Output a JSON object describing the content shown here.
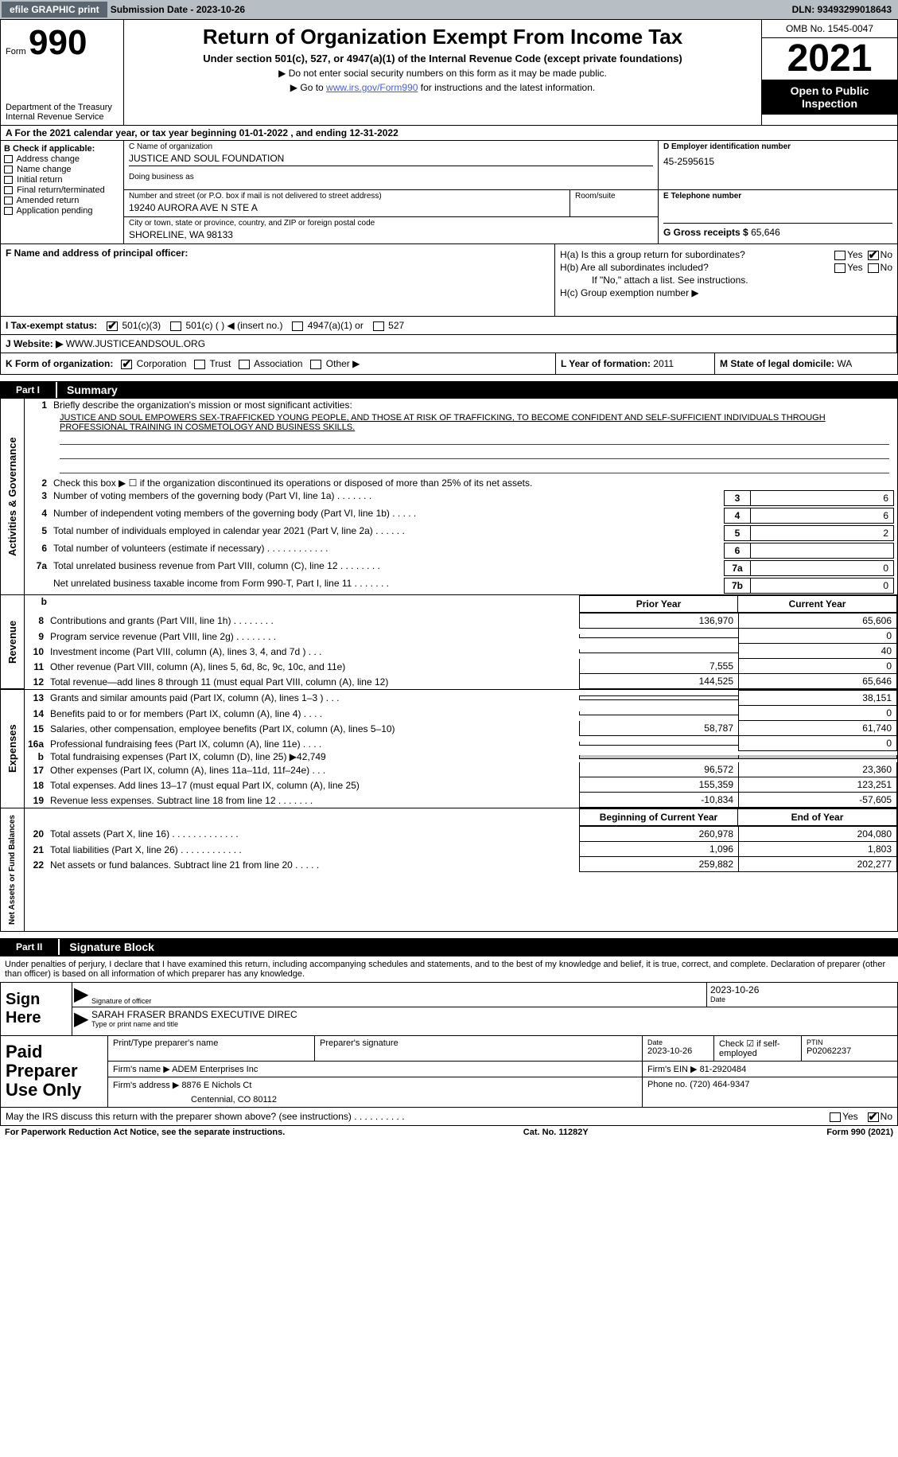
{
  "topbar": {
    "efile_btn": "efile GRAPHIC print",
    "submission_label": "Submission Date - 2023-10-26",
    "dln_label": "DLN: 93493299018643"
  },
  "header": {
    "form_prefix": "Form",
    "form_number": "990",
    "dept": "Department of the Treasury\nInternal Revenue Service",
    "title": "Return of Organization Exempt From Income Tax",
    "subtitle": "Under section 501(c), 527, or 4947(a)(1) of the Internal Revenue Code (except private foundations)",
    "instruct1": "▶ Do not enter social security numbers on this form as it may be made public.",
    "instruct2_pre": "▶ Go to ",
    "instruct2_link": "www.irs.gov/Form990",
    "instruct2_post": " for instructions and the latest information.",
    "omb": "OMB No. 1545-0047",
    "year": "2021",
    "inspection": "Open to Public Inspection"
  },
  "period": "A For the 2021 calendar year, or tax year beginning 01-01-2022    , and ending 12-31-2022",
  "colB": {
    "label": "B Check if applicable:",
    "items": [
      "Address change",
      "Name change",
      "Initial return",
      "Final return/terminated",
      "Amended return",
      "Application pending"
    ]
  },
  "colC": {
    "name_label": "C Name of organization",
    "name": "JUSTICE AND SOUL FOUNDATION",
    "dba_label": "Doing business as",
    "street_label": "Number and street (or P.O. box if mail is not delivered to street address)",
    "street": "19240 AURORA AVE N STE A",
    "suite_label": "Room/suite",
    "city_label": "City or town, state or province, country, and ZIP or foreign postal code",
    "city": "SHORELINE, WA  98133"
  },
  "colD": {
    "label": "D Employer identification number",
    "value": "45-2595615"
  },
  "colE": {
    "label": "E Telephone number",
    "value": ""
  },
  "colG": {
    "label": "G Gross receipts $",
    "value": "65,646"
  },
  "colF": {
    "label": "F  Name and address of principal officer:"
  },
  "colH": {
    "ha": "H(a)  Is this a group return for subordinates?",
    "hb": "H(b)  Are all subordinates included?",
    "hb_note": "If \"No,\" attach a list. See instructions.",
    "hc": "H(c)  Group exemption number ▶",
    "yes": "Yes",
    "no": "No"
  },
  "taxexempt": {
    "label": "I    Tax-exempt status:",
    "opt1": "501(c)(3)",
    "opt2": "501(c) (  ) ◀ (insert no.)",
    "opt3": "4947(a)(1) or",
    "opt4": "527"
  },
  "website": {
    "label": "J   Website: ▶",
    "value": "WWW.JUSTICEANDSOUL.ORG"
  },
  "korg": {
    "label": "K Form of organization:",
    "opts": [
      "Corporation",
      "Trust",
      "Association",
      "Other ▶"
    ],
    "year_label": "L Year of formation:",
    "year": "2011",
    "state_label": "M State of legal domicile:",
    "state": "WA"
  },
  "part1": {
    "num": "Part I",
    "title": "Summary"
  },
  "summary": {
    "line1_label": "Briefly describe the organization's mission or most significant activities:",
    "mission": "JUSTICE AND SOUL EMPOWERS SEX-TRAFFICKED YOUNG PEOPLE, AND THOSE AT RISK OF TRAFFICKING, TO BECOME CONFIDENT AND SELF-SUFFICIENT INDIVIDUALS THROUGH PROFESSIONAL TRAINING IN COSMETOLOGY AND BUSINESS SKILLS.",
    "line2": "Check this box ▶ ☐  if the organization discontinued its operations or disposed of more than 25% of its net assets.",
    "lines": [
      {
        "n": "3",
        "d": "Number of voting members of the governing body (Part VI, line 1a)  .   .   .   .   .   .   .",
        "b": "3",
        "v": "6"
      },
      {
        "n": "4",
        "d": "Number of independent voting members of the governing body (Part VI, line 1b)  .   .   .   .   .",
        "b": "4",
        "v": "6"
      },
      {
        "n": "5",
        "d": "Total number of individuals employed in calendar year 2021 (Part V, line 2a)  .   .   .   .   .   .",
        "b": "5",
        "v": "2"
      },
      {
        "n": "6",
        "d": "Total number of volunteers (estimate if necessary)    .   .   .   .   .   .   .   .   .   .   .   .",
        "b": "6",
        "v": ""
      },
      {
        "n": "7a",
        "d": "Total unrelated business revenue from Part VIII, column (C), line 12    .   .   .   .   .   .   .   .",
        "b": "7a",
        "v": "0"
      },
      {
        "n": "",
        "d": "Net unrelated business taxable income from Form 990-T, Part I, line 11   .   .   .   .   .   .   .",
        "b": "7b",
        "v": "0"
      }
    ]
  },
  "twocol": {
    "head_prior": "Prior Year",
    "head_current": "Current Year",
    "revenue": [
      {
        "n": "8",
        "d": "Contributions and grants (Part VIII, line 1h)   .   .   .   .   .   .   .   .",
        "p": "136,970",
        "c": "65,606"
      },
      {
        "n": "9",
        "d": "Program service revenue (Part VIII, line 2g)    .   .   .   .   .   .   .   .",
        "p": "",
        "c": "0"
      },
      {
        "n": "10",
        "d": "Investment income (Part VIII, column (A), lines 3, 4, and 7d )   .   .   .",
        "p": "",
        "c": "40"
      },
      {
        "n": "11",
        "d": "Other revenue (Part VIII, column (A), lines 5, 6d, 8c, 9c, 10c, and 11e)",
        "p": "7,555",
        "c": "0"
      },
      {
        "n": "12",
        "d": "Total revenue—add lines 8 through 11 (must equal Part VIII, column (A), line 12)",
        "p": "144,525",
        "c": "65,646"
      }
    ],
    "expenses": [
      {
        "n": "13",
        "d": "Grants and similar amounts paid (Part IX, column (A), lines 1–3 )   .   .   .",
        "p": "",
        "c": "38,151"
      },
      {
        "n": "14",
        "d": "Benefits paid to or for members (Part IX, column (A), line 4)   .   .   .   .",
        "p": "",
        "c": "0"
      },
      {
        "n": "15",
        "d": "Salaries, other compensation, employee benefits (Part IX, column (A), lines 5–10)",
        "p": "58,787",
        "c": "61,740"
      },
      {
        "n": "16a",
        "d": "Professional fundraising fees (Part IX, column (A), line 11e)   .   .   .   .",
        "p": "",
        "c": "0"
      },
      {
        "n": "b",
        "d": "Total fundraising expenses (Part IX, column (D), line 25) ▶42,749",
        "p": "grey",
        "c": "grey"
      },
      {
        "n": "17",
        "d": "Other expenses (Part IX, column (A), lines 11a–11d, 11f–24e)   .   .   .",
        "p": "96,572",
        "c": "23,360"
      },
      {
        "n": "18",
        "d": "Total expenses. Add lines 13–17 (must equal Part IX, column (A), line 25)",
        "p": "155,359",
        "c": "123,251"
      },
      {
        "n": "19",
        "d": "Revenue less expenses. Subtract line 18 from line 12  .   .   .   .   .   .   .",
        "p": "-10,834",
        "c": "-57,605"
      }
    ],
    "head_begin": "Beginning of Current Year",
    "head_end": "End of Year",
    "netassets": [
      {
        "n": "20",
        "d": "Total assets (Part X, line 16)  .   .   .   .   .   .   .   .   .   .   .   .   .",
        "p": "260,978",
        "c": "204,080"
      },
      {
        "n": "21",
        "d": "Total liabilities (Part X, line 26)   .   .   .   .   .   .   .   .   .   .   .   .",
        "p": "1,096",
        "c": "1,803"
      },
      {
        "n": "22",
        "d": "Net assets or fund balances. Subtract line 21 from line 20  .   .   .   .   .",
        "p": "259,882",
        "c": "202,277"
      }
    ]
  },
  "part2": {
    "num": "Part II",
    "title": "Signature Block"
  },
  "sig": {
    "intro": "Under penalties of perjury, I declare that I have examined this return, including accompanying schedules and statements, and to the best of my knowledge and belief, it is true, correct, and complete. Declaration of preparer (other than officer) is based on all information of which preparer has any knowledge.",
    "sign_here": "Sign Here",
    "sig_officer": "Signature of officer",
    "date": "Date",
    "sig_date": "2023-10-26",
    "name_title": "SARAH FRASER BRANDS  EXECUTIVE DIREC",
    "name_title_lbl": "Type or print name and title"
  },
  "prep": {
    "label": "Paid Preparer Use Only",
    "print_name": "Print/Type preparer's name",
    "prep_sig": "Preparer's signature",
    "date_lbl": "Date",
    "date": "2023-10-26",
    "check_lbl": "Check ☑ if self-employed",
    "ptin_lbl": "PTIN",
    "ptin": "P02062237",
    "firm_name_lbl": "Firm's name    ▶",
    "firm_name": "ADEM Enterprises Inc",
    "firm_ein_lbl": "Firm's EIN ▶",
    "firm_ein": "81-2920484",
    "firm_addr_lbl": "Firm's address ▶",
    "firm_addr1": "8876 E Nichols Ct",
    "firm_addr2": "Centennial, CO  80112",
    "phone_lbl": "Phone no.",
    "phone": "(720) 464-9347"
  },
  "discuss": {
    "text": "May the IRS discuss this return with the preparer shown above? (see instructions)   .   .   .   .   .   .   .   .   .   .",
    "yes": "Yes",
    "no": "No"
  },
  "footer": {
    "left": "For Paperwork Reduction Act Notice, see the separate instructions.",
    "cat": "Cat. No. 11282Y",
    "right": "Form 990 (2021)"
  },
  "vtabs": {
    "ag": "Activities & Governance",
    "rev": "Revenue",
    "exp": "Expenses",
    "na": "Net Assets or Fund Balances"
  }
}
